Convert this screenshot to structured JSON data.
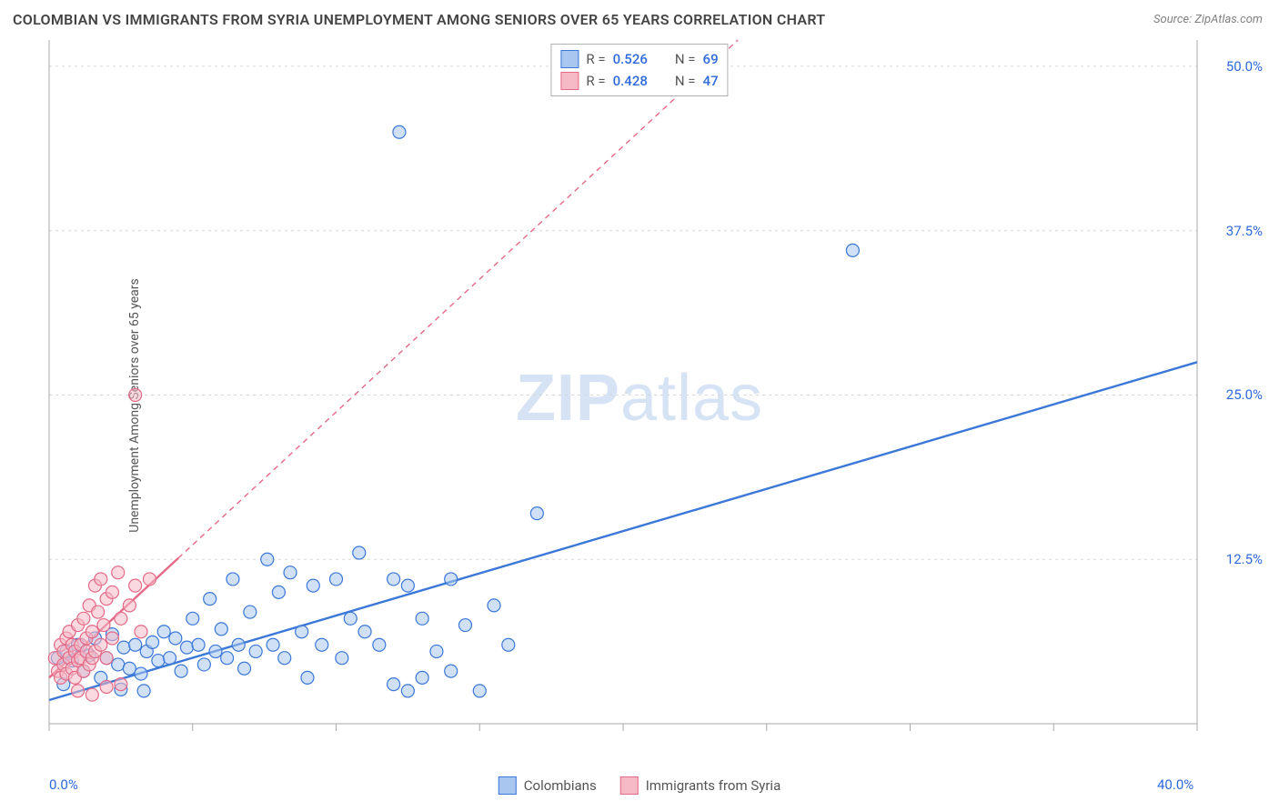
{
  "title": "COLOMBIAN VS IMMIGRANTS FROM SYRIA UNEMPLOYMENT AMONG SENIORS OVER 65 YEARS CORRELATION CHART",
  "source": "Source: ZipAtlas.com",
  "watermark_a": "ZIP",
  "watermark_b": "atlas",
  "y_axis_label": "Unemployment Among Seniors over 65 years",
  "chart": {
    "type": "scatter",
    "xlim": [
      0,
      40
    ],
    "ylim": [
      0,
      52
    ],
    "x_ticks": [
      0,
      5,
      10,
      15,
      20,
      25,
      30,
      35,
      40
    ],
    "x_tick_labels": {
      "0": "0.0%",
      "40": "40.0%"
    },
    "y_ticks": [
      12.5,
      25.0,
      37.5,
      50.0
    ],
    "y_tick_labels": [
      "12.5%",
      "25.0%",
      "37.5%",
      "50.0%"
    ],
    "grid_color": "#d8d8d8",
    "axis_color": "#a8a8a8",
    "background": "#ffffff",
    "marker_radius": 7,
    "marker_stroke_width": 1.2,
    "line_width": 2.4,
    "dash_pattern": "6 5"
  },
  "series": [
    {
      "name": "Colombians",
      "color_fill": "#a8c6f0",
      "color_stroke": "#3b78d8",
      "fill_opacity": 0.55,
      "R": "0.526",
      "N": "69",
      "trend": {
        "x1": 0,
        "y1": 1.8,
        "x2": 40,
        "y2": 27.5,
        "solid_until_x": 40
      },
      "points": [
        [
          0.3,
          5.0
        ],
        [
          0.5,
          3.0
        ],
        [
          0.6,
          5.5
        ],
        [
          0.8,
          4.8
        ],
        [
          1.0,
          6.0
        ],
        [
          1.2,
          4.0
        ],
        [
          1.4,
          5.2
        ],
        [
          1.6,
          6.5
        ],
        [
          1.8,
          3.5
        ],
        [
          2.0,
          5.0
        ],
        [
          2.2,
          6.8
        ],
        [
          2.4,
          4.5
        ],
        [
          2.5,
          2.6
        ],
        [
          2.6,
          5.8
        ],
        [
          2.8,
          4.2
        ],
        [
          3.0,
          6.0
        ],
        [
          3.2,
          3.8
        ],
        [
          3.3,
          2.5
        ],
        [
          3.4,
          5.5
        ],
        [
          3.6,
          6.2
        ],
        [
          3.8,
          4.8
        ],
        [
          4.0,
          7.0
        ],
        [
          4.2,
          5.0
        ],
        [
          4.4,
          6.5
        ],
        [
          4.6,
          4.0
        ],
        [
          4.8,
          5.8
        ],
        [
          5.0,
          8.0
        ],
        [
          5.2,
          6.0
        ],
        [
          5.4,
          4.5
        ],
        [
          5.6,
          9.5
        ],
        [
          5.8,
          5.5
        ],
        [
          6.0,
          7.2
        ],
        [
          6.2,
          5.0
        ],
        [
          6.4,
          11.0
        ],
        [
          6.6,
          6.0
        ],
        [
          6.8,
          4.2
        ],
        [
          7.0,
          8.5
        ],
        [
          7.2,
          5.5
        ],
        [
          7.6,
          12.5
        ],
        [
          7.8,
          6.0
        ],
        [
          8.0,
          10.0
        ],
        [
          8.2,
          5.0
        ],
        [
          8.4,
          11.5
        ],
        [
          8.8,
          7.0
        ],
        [
          9.0,
          3.5
        ],
        [
          9.2,
          10.5
        ],
        [
          9.5,
          6.0
        ],
        [
          10.0,
          11.0
        ],
        [
          10.2,
          5.0
        ],
        [
          10.5,
          8.0
        ],
        [
          10.8,
          13.0
        ],
        [
          11.0,
          7.0
        ],
        [
          11.5,
          6.0
        ],
        [
          12.0,
          11.0
        ],
        [
          12.0,
          3.0
        ],
        [
          12.2,
          45.0
        ],
        [
          12.5,
          10.5
        ],
        [
          12.5,
          2.5
        ],
        [
          13.0,
          8.0
        ],
        [
          13.5,
          5.5
        ],
        [
          14.0,
          11.0
        ],
        [
          14.5,
          7.5
        ],
        [
          15.0,
          2.5
        ],
        [
          15.5,
          9.0
        ],
        [
          16.0,
          6.0
        ],
        [
          17.0,
          16.0
        ],
        [
          28.0,
          36.0
        ],
        [
          14.0,
          4.0
        ],
        [
          13.0,
          3.5
        ]
      ]
    },
    {
      "name": "Immigrants from Syria",
      "color_fill": "#f6b9c6",
      "color_stroke": "#e46a87",
      "fill_opacity": 0.55,
      "R": "0.428",
      "N": "47",
      "trend": {
        "x1": 0,
        "y1": 3.5,
        "x2": 24,
        "y2": 52,
        "solid_until_x": 4.5
      },
      "points": [
        [
          0.2,
          5.0
        ],
        [
          0.3,
          4.0
        ],
        [
          0.4,
          6.0
        ],
        [
          0.4,
          3.5
        ],
        [
          0.5,
          5.5
        ],
        [
          0.5,
          4.5
        ],
        [
          0.6,
          6.5
        ],
        [
          0.6,
          3.8
        ],
        [
          0.7,
          5.0
        ],
        [
          0.7,
          7.0
        ],
        [
          0.8,
          4.2
        ],
        [
          0.8,
          6.0
        ],
        [
          0.9,
          5.5
        ],
        [
          0.9,
          3.5
        ],
        [
          1.0,
          7.5
        ],
        [
          1.0,
          4.8
        ],
        [
          1.1,
          6.0
        ],
        [
          1.1,
          5.0
        ],
        [
          1.2,
          4.0
        ],
        [
          1.2,
          8.0
        ],
        [
          1.3,
          5.5
        ],
        [
          1.3,
          6.5
        ],
        [
          1.4,
          4.5
        ],
        [
          1.4,
          9.0
        ],
        [
          1.5,
          5.0
        ],
        [
          1.5,
          7.0
        ],
        [
          1.6,
          10.5
        ],
        [
          1.6,
          5.5
        ],
        [
          1.7,
          8.5
        ],
        [
          1.8,
          6.0
        ],
        [
          1.8,
          11.0
        ],
        [
          1.9,
          7.5
        ],
        [
          2.0,
          9.5
        ],
        [
          2.0,
          5.0
        ],
        [
          2.2,
          10.0
        ],
        [
          2.2,
          6.5
        ],
        [
          2.4,
          11.5
        ],
        [
          2.5,
          8.0
        ],
        [
          2.8,
          9.0
        ],
        [
          3.0,
          25.0
        ],
        [
          3.0,
          10.5
        ],
        [
          3.2,
          7.0
        ],
        [
          3.5,
          11.0
        ],
        [
          1.0,
          2.5
        ],
        [
          1.5,
          2.2
        ],
        [
          2.0,
          2.8
        ],
        [
          2.5,
          3.0
        ]
      ]
    }
  ],
  "legend_top_labels": {
    "R": "R =",
    "N": "N ="
  },
  "legend_bottom": [
    {
      "label": "Colombians",
      "swatch": "blue"
    },
    {
      "label": "Immigrants from Syria",
      "swatch": "pink"
    }
  ]
}
